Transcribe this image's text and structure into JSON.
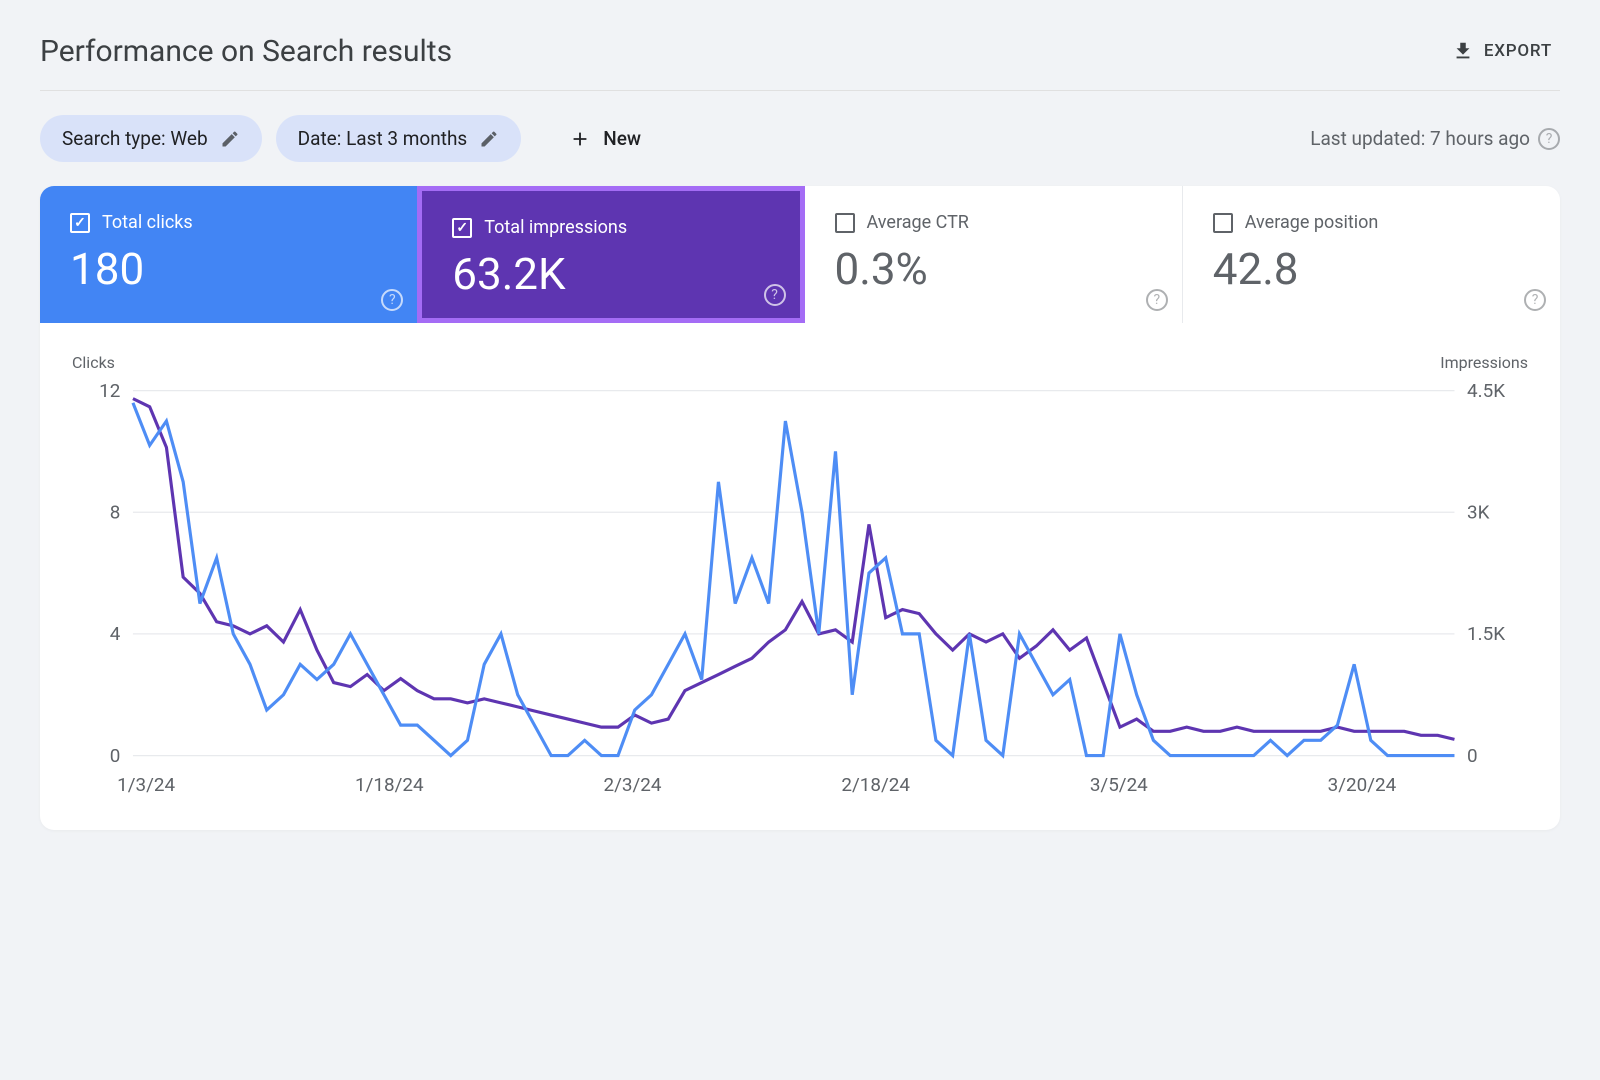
{
  "header": {
    "title": "Performance on Search results",
    "export_label": "EXPORT"
  },
  "filters": {
    "search_type": "Search type: Web",
    "date": "Date: Last 3 months",
    "new_label": "New",
    "last_updated": "Last updated: 7 hours ago"
  },
  "metrics": {
    "clicks": {
      "label": "Total clicks",
      "value": "180",
      "checked": true,
      "bg": "#4285f4"
    },
    "impressions": {
      "label": "Total impressions",
      "value": "63.2K",
      "checked": true,
      "bg": "#5e35b1",
      "highlight_border": "#a46cf5"
    },
    "ctr": {
      "label": "Average CTR",
      "value": "0.3%",
      "checked": false
    },
    "position": {
      "label": "Average position",
      "value": "42.8",
      "checked": false
    }
  },
  "chart": {
    "type": "line",
    "left_label": "Clicks",
    "right_label": "Impressions",
    "background_color": "#ffffff",
    "grid_color": "#e8eaed",
    "left_axis": {
      "min": 0,
      "max": 12,
      "ticks": [
        0,
        4,
        8,
        12
      ]
    },
    "right_axis": {
      "min": 0,
      "max": 4500,
      "ticks": [
        0,
        1500,
        3000,
        4500
      ],
      "tick_labels": [
        "0",
        "1.5K",
        "3K",
        "4.5K"
      ]
    },
    "x_labels": [
      "1/3/24",
      "1/18/24",
      "2/3/24",
      "2/18/24",
      "3/5/24",
      "3/20/24"
    ],
    "clicks_color": "#4e8df5",
    "impressions_color": "#5e35b1",
    "line_width": 2.5,
    "clicks_series": [
      11.6,
      10.2,
      11.0,
      9.0,
      5.0,
      6.5,
      4.0,
      3.0,
      1.5,
      2.0,
      3.0,
      2.5,
      3.0,
      4.0,
      3.0,
      2.0,
      1.0,
      1.0,
      0.5,
      0,
      0.5,
      3.0,
      4.0,
      2.0,
      1.0,
      0,
      0,
      0.5,
      0,
      0,
      1.5,
      2.0,
      3.0,
      4.0,
      2.5,
      9.0,
      5.0,
      6.5,
      5.0,
      11.0,
      8.0,
      4.0,
      10.0,
      2.0,
      6.0,
      6.5,
      4.0,
      4.0,
      0.5,
      0,
      4.0,
      0.5,
      0,
      4.0,
      3.0,
      2.0,
      2.5,
      0,
      0,
      4.0,
      2.0,
      0.5,
      0,
      0,
      0,
      0,
      0,
      0,
      0.5,
      0,
      0.5,
      0.5,
      1.0,
      3.0,
      0.5,
      0,
      0,
      0,
      0,
      0
    ],
    "impressions_series": [
      4400,
      4300,
      3800,
      2200,
      2000,
      1650,
      1600,
      1500,
      1600,
      1400,
      1800,
      1300,
      900,
      850,
      1000,
      800,
      950,
      800,
      700,
      700,
      650,
      700,
      650,
      600,
      550,
      500,
      450,
      400,
      350,
      350,
      500,
      400,
      450,
      800,
      900,
      1000,
      1100,
      1200,
      1400,
      1550,
      1900,
      1500,
      1550,
      1400,
      2850,
      1700,
      1800,
      1750,
      1500,
      1300,
      1500,
      1400,
      1500,
      1200,
      1350,
      1550,
      1300,
      1450,
      900,
      350,
      450,
      300,
      300,
      350,
      300,
      300,
      350,
      300,
      300,
      300,
      300,
      300,
      350,
      300,
      300,
      300,
      300,
      250,
      250,
      200
    ]
  }
}
